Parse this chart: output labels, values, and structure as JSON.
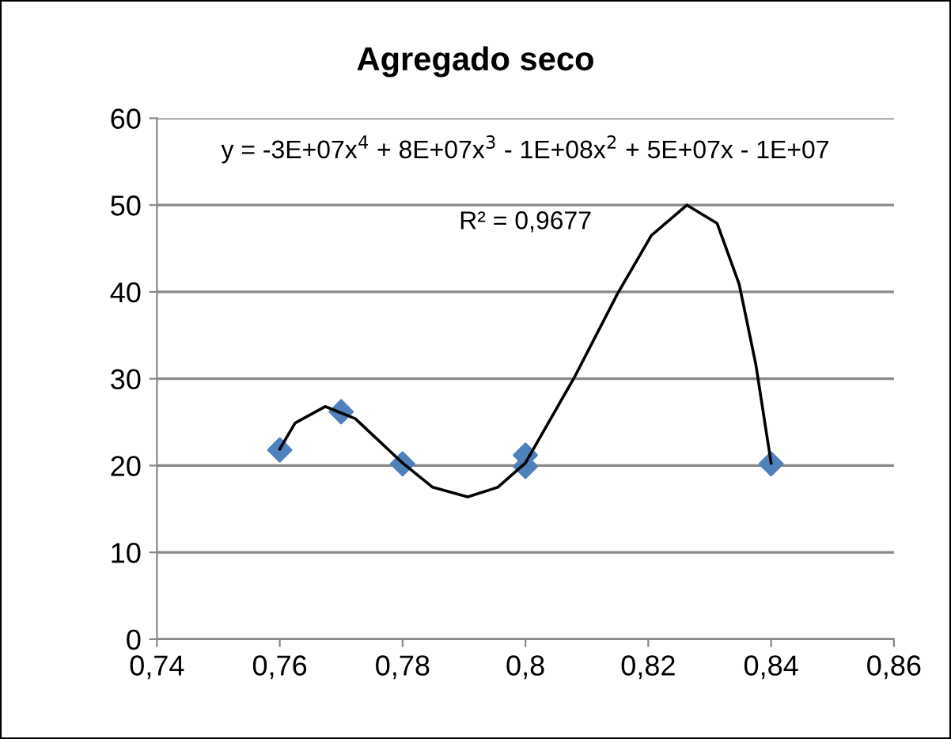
{
  "chart_data": {
    "type": "scatter",
    "title": "Agregado seco",
    "series": [
      {
        "color": "#4f81bd",
        "marker": "diamond",
        "x": [
          0.76,
          0.77,
          0.78,
          0.8,
          0.8,
          0.84
        ],
        "values": [
          21.8,
          26.2,
          20.2,
          21.2,
          19.9,
          20.2
        ]
      },
      {
        "type": "line",
        "color": "#000000",
        "marker": "none",
        "x": [
          0.76,
          0.7625,
          0.7674,
          0.7723,
          0.78,
          0.7849,
          0.7906,
          0.7955,
          0.8,
          0.808,
          0.815,
          0.8205,
          0.8263,
          0.8312,
          0.8348,
          0.8375,
          0.84
        ],
        "values": [
          21.9,
          24.9,
          26.8,
          25.4,
          20.3,
          17.5,
          16.4,
          17.5,
          20.3,
          30.2,
          39.8,
          46.5,
          50.0,
          47.9,
          40.9,
          31.7,
          20.3
        ]
      }
    ],
    "annotations": [
      "y = -3E+07x$^{4}$ + 8E+07x$^{3}$ - 1E+08x$^{2}$ + 5E+07x - 1E+07",
      "R² = 0,9677"
    ],
    "xlim": [
      0.74,
      0.86
    ],
    "xticks": [
      {
        "value": 0.74,
        "label": "0,74"
      },
      {
        "value": 0.76,
        "label": "0,76"
      },
      {
        "value": 0.78,
        "label": "0,78"
      },
      {
        "value": 0.8,
        "label": "0,8"
      },
      {
        "value": 0.82,
        "label": "0,82"
      },
      {
        "value": 0.84,
        "label": "0,84"
      },
      {
        "value": 0.86,
        "label": "0,86"
      }
    ],
    "ylim": [
      0,
      60
    ],
    "yticks": [
      0,
      10,
      20,
      30,
      40,
      50,
      60
    ],
    "grid": "y",
    "legend": false
  }
}
